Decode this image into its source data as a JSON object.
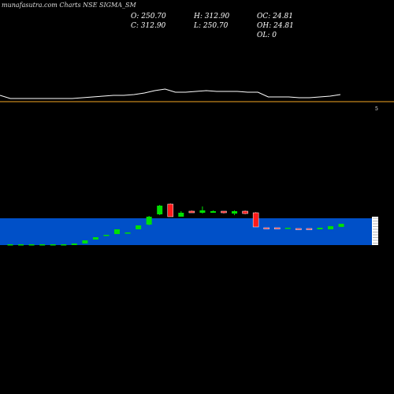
{
  "header": {
    "title": "munafasutra.com Charts NSE SIGMA_SM",
    "open": "O: 250.70",
    "close": "C: 312.90",
    "high": "H: 312.90",
    "low": "L: 250.70",
    "oc": "OC: 24.81",
    "oh": "OH: 24.81",
    "ol": "OL: 0"
  },
  "chart_data": [
    {
      "type": "line",
      "series": [
        {
          "values": [
            120,
            116,
            116,
            116,
            116,
            116,
            116,
            116,
            117,
            118,
            119,
            120,
            120,
            121,
            123,
            126,
            128,
            124,
            124,
            125,
            126,
            125,
            125,
            125,
            124,
            124,
            118,
            118,
            118,
            117,
            117,
            118,
            119,
            121
          ]
        }
      ],
      "reference_line": 112,
      "axis_tick_label": "5",
      "line_color": "#ffffff",
      "reference_color": "#f5a623"
    },
    {
      "type": "candlestick",
      "panel_color": "#0050c8",
      "up_color": "#00e000",
      "down_color": "#ff1a1a",
      "candles": [
        {
          "o": 240,
          "c": 241,
          "h": 241,
          "l": 240
        },
        {
          "o": 240,
          "c": 241,
          "h": 241,
          "l": 240
        },
        {
          "o": 240,
          "c": 241,
          "h": 241,
          "l": 240
        },
        {
          "o": 240,
          "c": 241,
          "h": 241,
          "l": 240
        },
        {
          "o": 240,
          "c": 241,
          "h": 241,
          "l": 240
        },
        {
          "o": 240,
          "c": 241,
          "h": 241,
          "l": 240
        },
        {
          "o": 240,
          "c": 242,
          "h": 242,
          "l": 240
        },
        {
          "o": 242,
          "c": 246,
          "h": 246,
          "l": 242
        },
        {
          "o": 247,
          "c": 250,
          "h": 250,
          "l": 247
        },
        {
          "o": 252,
          "c": 253,
          "h": 253,
          "l": 252
        },
        {
          "o": 254,
          "c": 260,
          "h": 260,
          "l": 254
        },
        {
          "o": 255,
          "c": 256,
          "h": 256,
          "l": 255
        },
        {
          "o": 260,
          "c": 265,
          "h": 265,
          "l": 260
        },
        {
          "o": 266,
          "c": 276,
          "h": 277,
          "l": 265
        },
        {
          "o": 279,
          "c": 290,
          "h": 291,
          "l": 278
        },
        {
          "o": 292,
          "c": 276,
          "h": 293,
          "l": 276
        },
        {
          "o": 276,
          "c": 281,
          "h": 283,
          "l": 276
        },
        {
          "o": 283,
          "c": 281,
          "h": 284,
          "l": 281
        },
        {
          "o": 281,
          "c": 284,
          "h": 289,
          "l": 280
        },
        {
          "o": 281,
          "c": 283,
          "h": 284,
          "l": 281
        },
        {
          "o": 283,
          "c": 281,
          "h": 283,
          "l": 280
        },
        {
          "o": 280,
          "c": 283,
          "h": 284,
          "l": 278
        },
        {
          "o": 283,
          "c": 280,
          "h": 284,
          "l": 279
        },
        {
          "o": 281,
          "c": 263,
          "h": 282,
          "l": 263
        },
        {
          "o": 262,
          "c": 261,
          "h": 262,
          "l": 261
        },
        {
          "o": 262,
          "c": 261,
          "h": 262,
          "l": 261
        },
        {
          "o": 261,
          "c": 262,
          "h": 262,
          "l": 261
        },
        {
          "o": 261,
          "c": 260,
          "h": 261,
          "l": 260
        },
        {
          "o": 261,
          "c": 260,
          "h": 261,
          "l": 260
        },
        {
          "o": 260,
          "c": 262,
          "h": 262,
          "l": 260
        },
        {
          "o": 260,
          "c": 264,
          "h": 264,
          "l": 260
        },
        {
          "o": 263,
          "c": 267,
          "h": 267,
          "l": 263
        }
      ]
    }
  ]
}
